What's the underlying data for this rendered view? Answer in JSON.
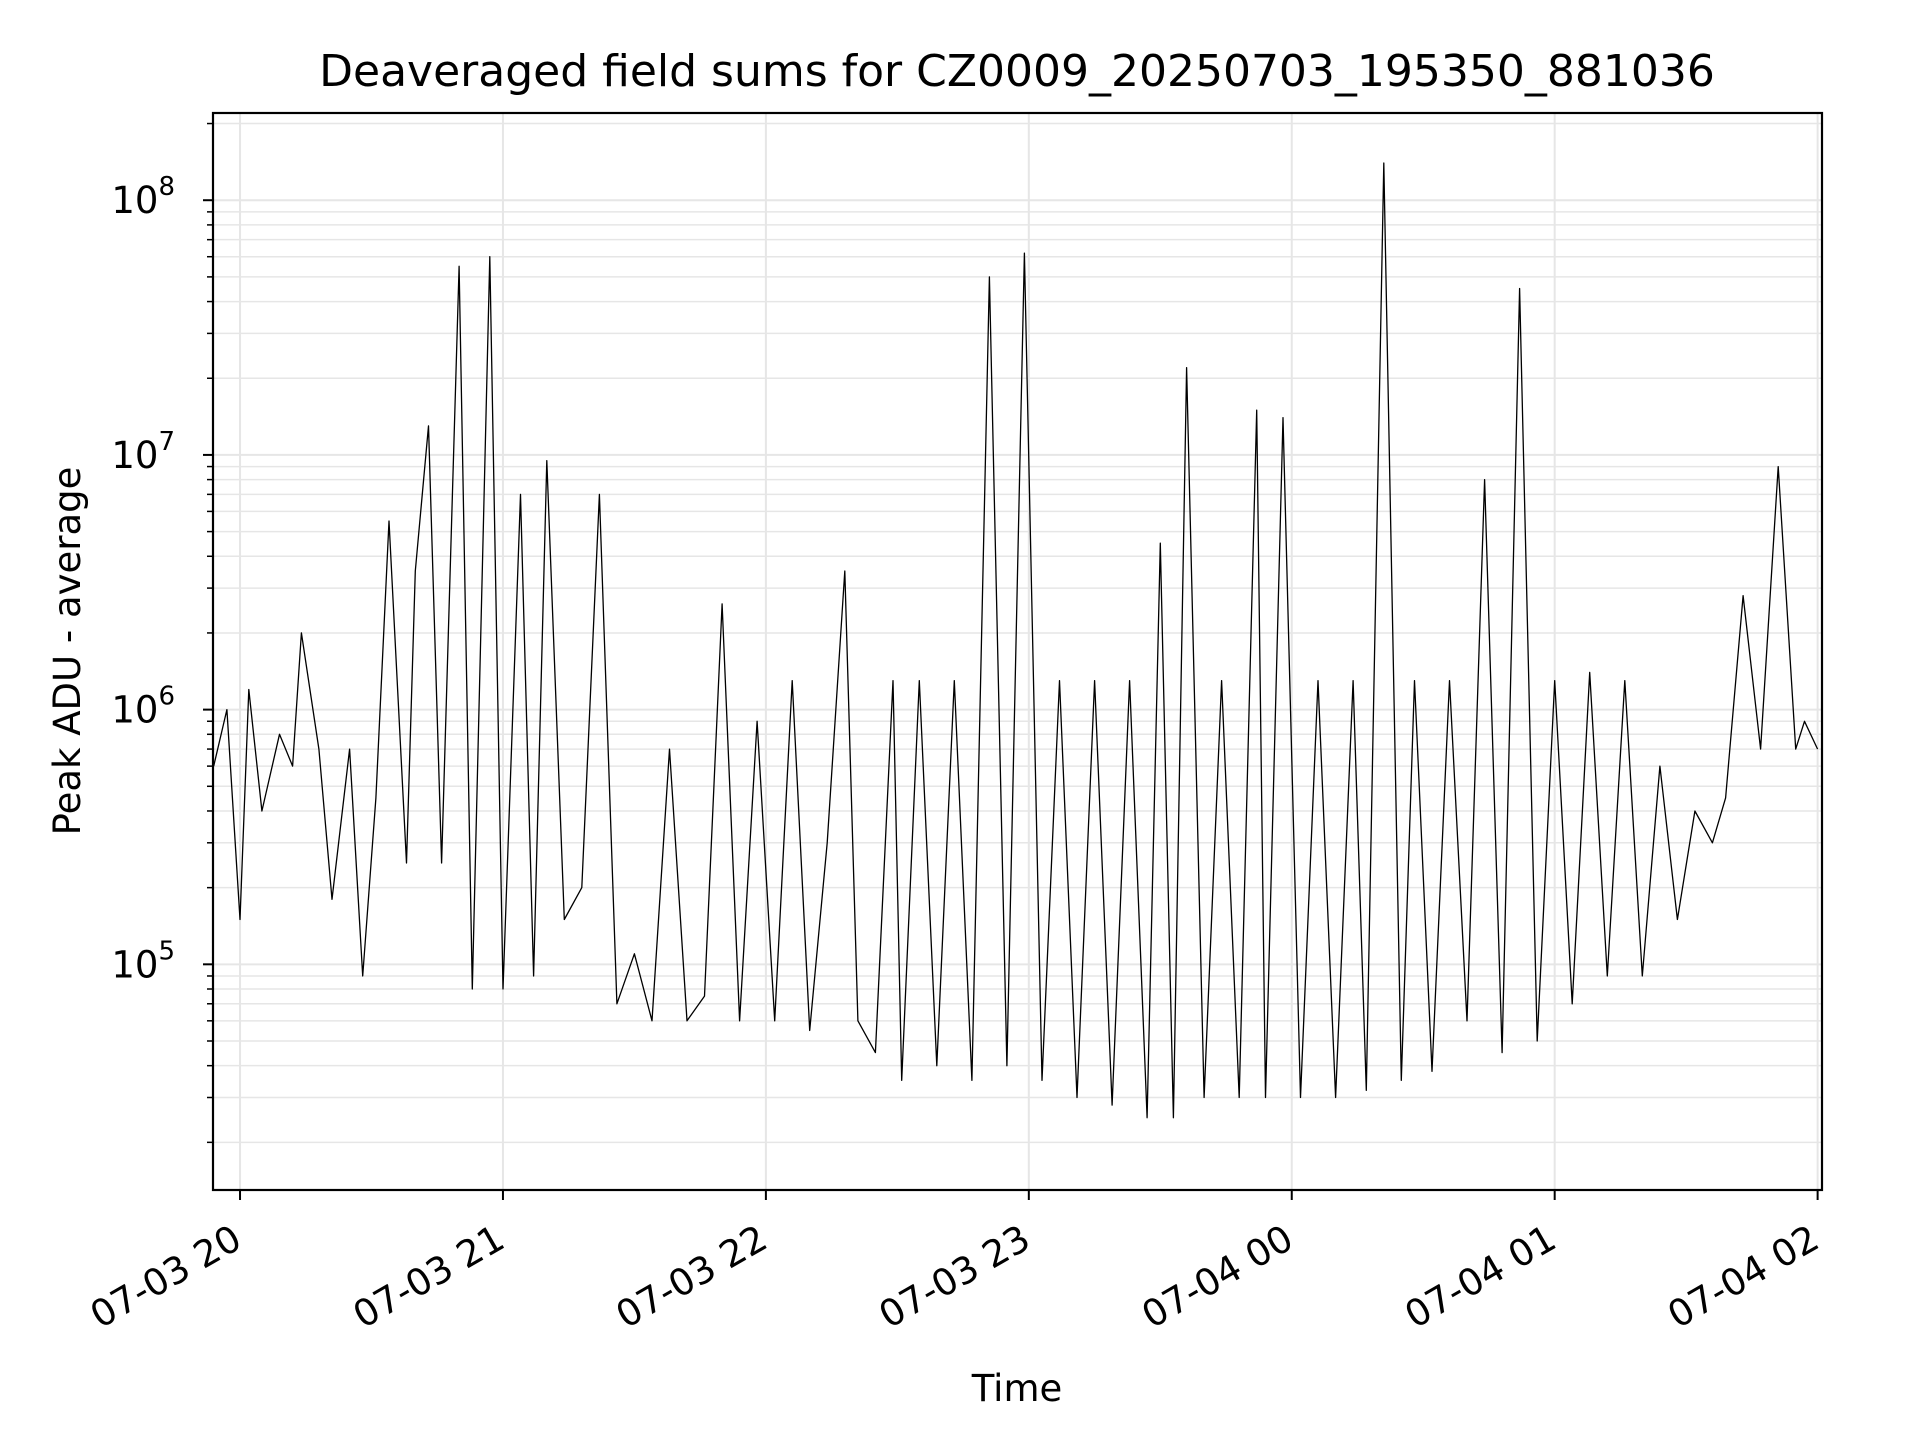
{
  "chart_data": {
    "type": "line",
    "title": "Deaveraged field sums for CZ0009_20250703_195350_881036",
    "xlabel": "Time",
    "ylabel": "Peak ADU - average",
    "yscale": "log",
    "ylim": [
      13000,
      220000000
    ],
    "xlim": [
      "2025-07-03T19:53:50",
      "2025-07-04T02:01:00"
    ],
    "grid": true,
    "legend": "none",
    "line_color": "#000000",
    "x_ticks": [
      "07-03 20",
      "07-03 21",
      "07-03 22",
      "07-03 23",
      "07-04 00",
      "07-04 01",
      "07-04 02"
    ],
    "y_ticks": [
      {
        "base": "10",
        "exp": "5",
        "value": 100000
      },
      {
        "base": "10",
        "exp": "6",
        "value": 1000000
      },
      {
        "base": "10",
        "exp": "7",
        "value": 10000000
      },
      {
        "base": "10",
        "exp": "8",
        "value": 100000000
      }
    ],
    "series": [
      {
        "name": "",
        "x": [
          "2025-07-03T19:54:00",
          "2025-07-03T19:57:00",
          "2025-07-03T20:00:00",
          "2025-07-03T20:02:00",
          "2025-07-03T20:05:00",
          "2025-07-03T20:09:00",
          "2025-07-03T20:12:00",
          "2025-07-03T20:14:00",
          "2025-07-03T20:18:00",
          "2025-07-03T20:21:00",
          "2025-07-03T20:25:00",
          "2025-07-03T20:28:00",
          "2025-07-03T20:31:00",
          "2025-07-03T20:34:00",
          "2025-07-03T20:38:00",
          "2025-07-03T20:40:00",
          "2025-07-03T20:43:00",
          "2025-07-03T20:46:00",
          "2025-07-03T20:50:00",
          "2025-07-03T20:53:00",
          "2025-07-03T20:57:00",
          "2025-07-03T21:00:00",
          "2025-07-03T21:04:00",
          "2025-07-03T21:07:00",
          "2025-07-03T21:10:00",
          "2025-07-03T21:14:00",
          "2025-07-03T21:18:00",
          "2025-07-03T21:22:00",
          "2025-07-03T21:26:00",
          "2025-07-03T21:30:00",
          "2025-07-03T21:34:00",
          "2025-07-03T21:38:00",
          "2025-07-03T21:42:00",
          "2025-07-03T21:46:00",
          "2025-07-03T21:50:00",
          "2025-07-03T21:54:00",
          "2025-07-03T21:58:00",
          "2025-07-03T22:02:00",
          "2025-07-03T22:06:00",
          "2025-07-03T22:10:00",
          "2025-07-03T22:14:00",
          "2025-07-03T22:18:00",
          "2025-07-03T22:21:00",
          "2025-07-03T22:25:00",
          "2025-07-03T22:29:00",
          "2025-07-03T22:31:00",
          "2025-07-03T22:35:00",
          "2025-07-03T22:39:00",
          "2025-07-03T22:43:00",
          "2025-07-03T22:47:00",
          "2025-07-03T22:51:00",
          "2025-07-03T22:55:00",
          "2025-07-03T22:59:00",
          "2025-07-03T23:03:00",
          "2025-07-03T23:07:00",
          "2025-07-03T23:11:00",
          "2025-07-03T23:15:00",
          "2025-07-03T23:19:00",
          "2025-07-03T23:23:00",
          "2025-07-03T23:27:00",
          "2025-07-03T23:30:00",
          "2025-07-03T23:33:00",
          "2025-07-03T23:36:00",
          "2025-07-03T23:40:00",
          "2025-07-03T23:44:00",
          "2025-07-03T23:48:00",
          "2025-07-03T23:52:00",
          "2025-07-03T23:54:00",
          "2025-07-03T23:58:00",
          "2025-07-04T00:02:00",
          "2025-07-04T00:06:00",
          "2025-07-04T00:10:00",
          "2025-07-04T00:14:00",
          "2025-07-04T00:17:00",
          "2025-07-04T00:21:00",
          "2025-07-04T00:25:00",
          "2025-07-04T00:28:00",
          "2025-07-04T00:32:00",
          "2025-07-04T00:36:00",
          "2025-07-04T00:40:00",
          "2025-07-04T00:44:00",
          "2025-07-04T00:48:00",
          "2025-07-04T00:52:00",
          "2025-07-04T00:56:00",
          "2025-07-04T01:00:00",
          "2025-07-04T01:04:00",
          "2025-07-04T01:08:00",
          "2025-07-04T01:12:00",
          "2025-07-04T01:16:00",
          "2025-07-04T01:20:00",
          "2025-07-04T01:24:00",
          "2025-07-04T01:28:00",
          "2025-07-04T01:32:00",
          "2025-07-04T01:36:00",
          "2025-07-04T01:39:00",
          "2025-07-04T01:43:00",
          "2025-07-04T01:47:00",
          "2025-07-04T01:51:00",
          "2025-07-04T01:55:00",
          "2025-07-04T01:57:00",
          "2025-07-04T02:00:00"
        ],
        "values": [
          600000,
          1000000,
          150000,
          1200000,
          400000,
          800000,
          600000,
          2000000,
          700000,
          180000,
          700000,
          90000,
          450000,
          5500000,
          250000,
          3500000,
          13000000,
          250000,
          55000000,
          80000,
          60000000,
          80000,
          7000000,
          90000,
          9500000,
          150000,
          200000,
          7000000,
          70000,
          110000,
          60000,
          700000,
          60000,
          75000,
          2600000,
          60000,
          900000,
          60000,
          1300000,
          55000,
          300000,
          3500000,
          60000,
          45000,
          1300000,
          35000,
          1300000,
          40000,
          1300000,
          35000,
          50000000,
          40000,
          62000000,
          35000,
          1300000,
          30000,
          1300000,
          28000,
          1300000,
          25000,
          4500000,
          25000,
          22000000,
          30000,
          1300000,
          30000,
          15000000,
          30000,
          14000000,
          30000,
          1300000,
          30000,
          1300000,
          32000,
          140000000,
          35000,
          1300000,
          38000,
          1300000,
          60000,
          8000000,
          45000,
          45000000,
          50000,
          1300000,
          70000,
          1400000,
          90000,
          1300000,
          90000,
          600000,
          150000,
          400000,
          300000,
          450000,
          2800000,
          700000,
          9000000,
          700000,
          900000,
          700000
        ]
      }
    ]
  }
}
